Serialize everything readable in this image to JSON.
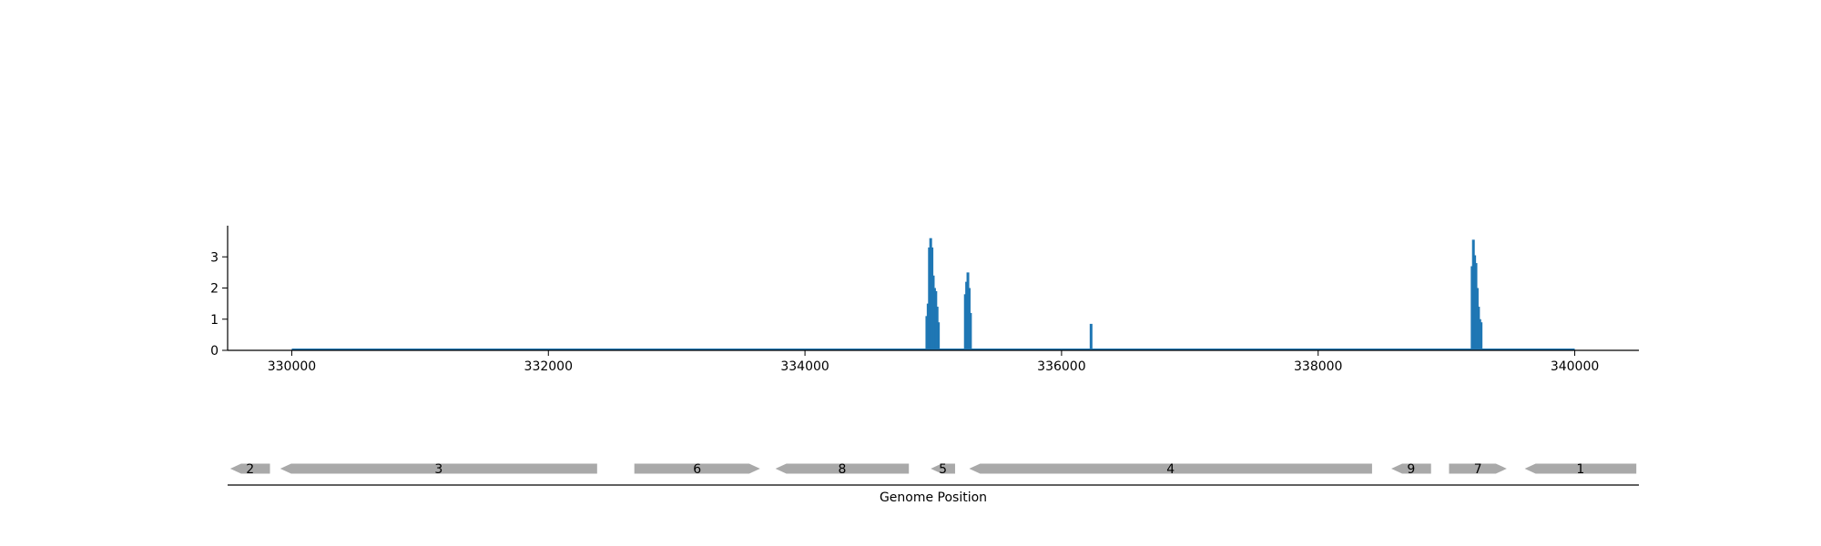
{
  "chart_data": [
    {
      "type": "bar",
      "title": "",
      "xlabel": "",
      "ylabel": "",
      "xlim": [
        329500,
        340500
      ],
      "ylim": [
        0,
        4
      ],
      "yticks": [
        0,
        1,
        2,
        3
      ],
      "xticks": [
        330000,
        332000,
        334000,
        336000,
        338000,
        340000
      ],
      "grid": false,
      "legend": "none",
      "baseline": {
        "x_start": 330000,
        "x_end": 340000,
        "value": 0
      },
      "series": [
        {
          "color": "#1f77b4",
          "x": [
            334950,
            334960,
            334970,
            334980,
            334990,
            335000,
            335010,
            335020,
            335030,
            335040,
            335250,
            335260,
            335270,
            335280,
            335290,
            336230,
            339200,
            339210,
            339220,
            339230,
            339240,
            339250,
            339260,
            339270
          ],
          "values": [
            1.1,
            1.5,
            3.3,
            3.6,
            3.3,
            2.4,
            2.0,
            1.9,
            1.4,
            0.9,
            1.8,
            2.2,
            2.5,
            2.0,
            1.2,
            0.85,
            2.7,
            3.55,
            3.05,
            2.8,
            2.0,
            1.4,
            1.0,
            0.9
          ]
        }
      ]
    },
    {
      "type": "gene-track",
      "xlabel": "Genome Position",
      "xlim": [
        329500,
        340500
      ],
      "color": "#a9a9a9",
      "genes": [
        {
          "label": "2",
          "start": 329520,
          "end": 329830,
          "strand": "-"
        },
        {
          "label": "3",
          "start": 329910,
          "end": 332380,
          "strand": "-"
        },
        {
          "label": "6",
          "start": 332670,
          "end": 333650,
          "strand": "+"
        },
        {
          "label": "8",
          "start": 333770,
          "end": 334810,
          "strand": "-"
        },
        {
          "label": "5",
          "start": 334980,
          "end": 335170,
          "strand": "-"
        },
        {
          "label": "4",
          "start": 335280,
          "end": 338420,
          "strand": "-"
        },
        {
          "label": "9",
          "start": 338570,
          "end": 338880,
          "strand": "-"
        },
        {
          "label": "7",
          "start": 339020,
          "end": 339470,
          "strand": "+"
        },
        {
          "label": "1",
          "start": 339610,
          "end": 340480,
          "strand": "-"
        }
      ]
    }
  ]
}
